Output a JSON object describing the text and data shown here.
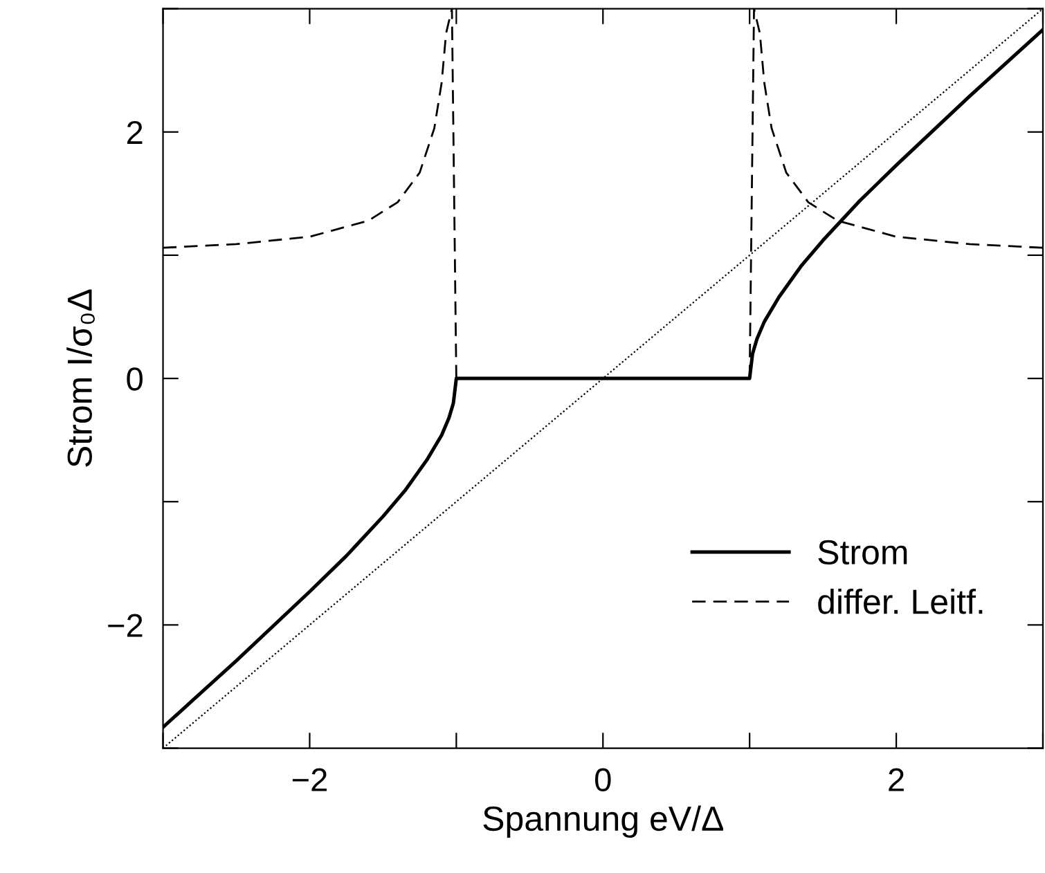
{
  "chart_data": {
    "type": "line",
    "xlabel": "Spannung eV/Δ",
    "ylabel": "Strom I/σ₀Δ",
    "xlim": [
      -3,
      3
    ],
    "ylim": [
      -3,
      3
    ],
    "xticks": [
      {
        "value": -3,
        "label": null
      },
      -2,
      {
        "value": -1,
        "label": null
      },
      0,
      {
        "value": 1,
        "label": null
      },
      2,
      {
        "value": 3,
        "label": null
      }
    ],
    "yticks": [
      {
        "value": -3,
        "label": null
      },
      -2,
      {
        "value": -1,
        "label": null
      },
      0,
      {
        "value": 1,
        "label": null
      },
      2,
      {
        "value": 3,
        "label": null
      }
    ],
    "grid": false,
    "legend": "bottom right",
    "marker": "none",
    "series": [
      {
        "name": "Strom",
        "color": "#000000",
        "line_style": "solid",
        "x": [
          -3,
          -2.5,
          -2,
          -1.75,
          -1.5,
          -1.35,
          -1.2,
          -1.1,
          -1.05,
          -1.02,
          -1,
          1,
          1.02,
          1.05,
          1.1,
          1.2,
          1.35,
          1.5,
          1.75,
          2,
          2.5,
          3
        ],
        "values": [
          -2.83,
          -2.29,
          -1.73,
          -1.44,
          -1.12,
          -0.91,
          -0.66,
          -0.46,
          -0.32,
          -0.2,
          0,
          0,
          0.2,
          0.32,
          0.46,
          0.66,
          0.91,
          1.12,
          1.44,
          1.73,
          2.29,
          2.83
        ]
      },
      {
        "name": "differ. Leitf.",
        "color": "#000000",
        "line_style": "dashed",
        "x": [
          -3,
          -2.5,
          -2,
          -1.6,
          -1.4,
          -1.25,
          -1.15,
          -1.1,
          -1.07,
          -1.03,
          -1,
          0,
          1,
          1.03,
          1.07,
          1.1,
          1.15,
          1.25,
          1.4,
          1.6,
          2,
          2.5,
          3
        ],
        "values": [
          1.06,
          1.09,
          1.15,
          1.28,
          1.43,
          1.67,
          2.03,
          2.4,
          2.8,
          3.0,
          0,
          null,
          0,
          3.0,
          2.8,
          2.4,
          2.03,
          1.67,
          1.43,
          1.28,
          1.15,
          1.09,
          1.06
        ]
      },
      {
        "color": "#000000",
        "line_style": "dotted",
        "x": [
          -3,
          3
        ],
        "values": [
          -3,
          3
        ]
      }
    ]
  }
}
